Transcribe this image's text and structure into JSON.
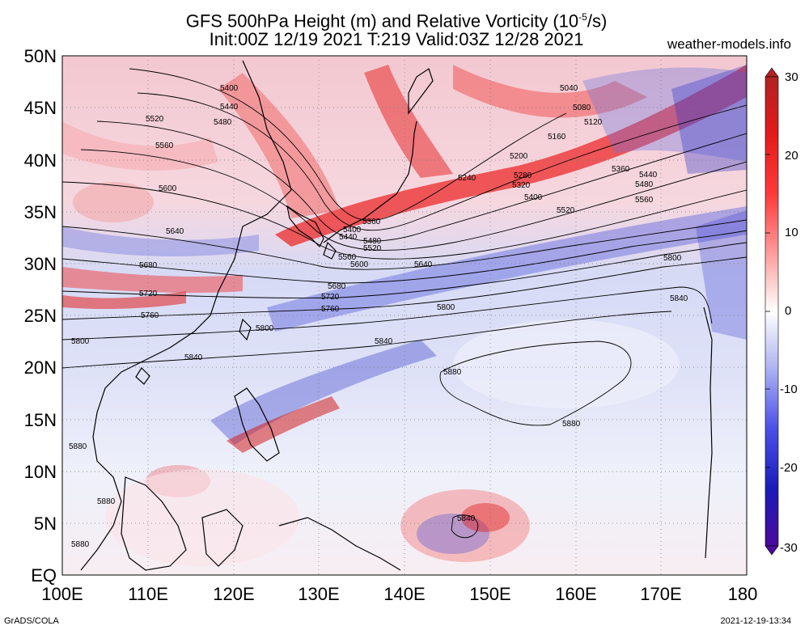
{
  "title": {
    "line1": "GFS 500hPa Height (m) and Relative Vorticity (10",
    "line1_exp": "-5",
    "line1_end": "/s)",
    "line2": "Init:00Z 12/19 2021 T:219 Valid:03Z 12/28 2021"
  },
  "credit": "weather-models.info",
  "footer": {
    "left": "GrADS/COLA",
    "right": "2021-12-19-13:34"
  },
  "axes": {
    "lat_labels": [
      "50N",
      "45N",
      "40N",
      "35N",
      "30N",
      "25N",
      "20N",
      "15N",
      "10N",
      "5N",
      "EQ"
    ],
    "lon_labels": [
      "100E",
      "110E",
      "120E",
      "130E",
      "140E",
      "150E",
      "160E",
      "170E",
      "180"
    ]
  },
  "colorbar": {
    "ticks": [
      "30",
      "20",
      "10",
      "0",
      "-10",
      "-20",
      "-30"
    ],
    "colors": {
      "max": "#b22222",
      "high": "#ff2a2a",
      "mid_pos": "#ffb0b0",
      "zero": "#ffffff",
      "mid_neg": "#b8bdf5",
      "low": "#2a2ae6",
      "min": "#4b0a9b"
    }
  },
  "contour_labels": [
    {
      "text": "5040",
      "id": "c5040a"
    },
    {
      "text": "5080",
      "id": "c5080a"
    },
    {
      "text": "5120",
      "id": "c5120a"
    },
    {
      "text": "5160",
      "id": "c5160a"
    },
    {
      "text": "5200",
      "id": "c5200a"
    },
    {
      "text": "5240",
      "id": "c5240a"
    },
    {
      "text": "5280",
      "id": "c5280a"
    },
    {
      "text": "5320",
      "id": "c5320a"
    },
    {
      "text": "5360",
      "id": "c5360a"
    },
    {
      "text": "5400",
      "id": "c5400a"
    },
    {
      "text": "5440",
      "id": "c5440a"
    },
    {
      "text": "5480",
      "id": "c5480a"
    },
    {
      "text": "5520",
      "id": "c5520a"
    },
    {
      "text": "5560",
      "id": "c5560a"
    },
    {
      "text": "5600",
      "id": "c5600a"
    },
    {
      "text": "5640",
      "id": "c5640a"
    },
    {
      "text": "5680",
      "id": "c5680a"
    },
    {
      "text": "5720",
      "id": "c5720a"
    },
    {
      "text": "5760",
      "id": "c5760a"
    },
    {
      "text": "5800",
      "id": "c5800a"
    },
    {
      "text": "5840",
      "id": "c5840a"
    },
    {
      "text": "5880",
      "id": "c5880a"
    }
  ]
}
